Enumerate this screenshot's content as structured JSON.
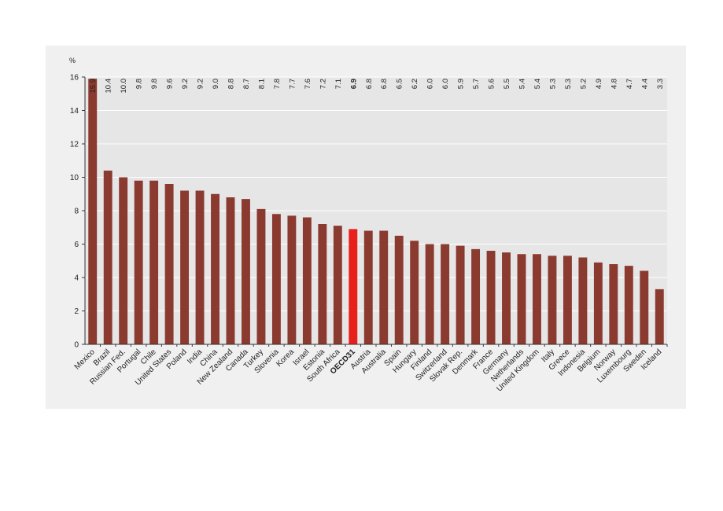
{
  "chart_data": {
    "type": "bar",
    "title": "",
    "xlabel": "",
    "ylabel": "%",
    "ylim": [
      0,
      16
    ],
    "yticks": [
      "0",
      "2",
      "4",
      "6",
      "8",
      "10",
      "12",
      "14",
      "16"
    ],
    "grid": true,
    "colors": {
      "bar": "#8b3a2f",
      "highlight": "#e8201c",
      "grid": "#ffffff",
      "plot_bg": "#e6e6e6"
    },
    "highlight_category": "OECD31",
    "categories": [
      "Mexico",
      "Brazil",
      "Russian Fed.",
      "Portugal",
      "Chile",
      "United States",
      "Poland",
      "India",
      "China",
      "New Zealand",
      "Canada",
      "Turkey",
      "Slovenia",
      "Korea",
      "Israel",
      "Estonia",
      "South Africa",
      "OECD31",
      "Austria",
      "Australia",
      "Spain",
      "Hungary",
      "Finland",
      "Switzerland",
      "Slovak Rep.",
      "Denmark",
      "France",
      "Germany",
      "Netherlands",
      "United Kingdom",
      "Italy",
      "Greece",
      "Indonesia",
      "Belgium",
      "Norway",
      "Luxembourg",
      "Sweden",
      "Iceland"
    ],
    "values": [
      15.9,
      10.4,
      10.0,
      9.8,
      9.8,
      9.6,
      9.2,
      9.2,
      9.0,
      8.8,
      8.7,
      8.1,
      7.8,
      7.7,
      7.6,
      7.2,
      7.1,
      6.9,
      6.8,
      6.8,
      6.5,
      6.2,
      6.0,
      6.0,
      5.9,
      5.7,
      5.6,
      5.5,
      5.4,
      5.4,
      5.3,
      5.3,
      5.2,
      4.9,
      4.8,
      4.7,
      4.4,
      3.3
    ],
    "data_labels": [
      "15.9",
      "10.4",
      "10.0",
      "9.8",
      "9.8",
      "9.6",
      "9.2",
      "9.2",
      "9.0",
      "8.8",
      "8.7",
      "8.1",
      "7.8",
      "7.7",
      "7.6",
      "7.2",
      "7.1",
      "6.9",
      "6.8",
      "6.8",
      "6.5",
      "6.2",
      "6.0",
      "6.0",
      "5.9",
      "5.7",
      "5.6",
      "5.5",
      "5.4",
      "5.4",
      "5.3",
      "5.3",
      "5.2",
      "4.9",
      "4.8",
      "4.7",
      "4.4",
      "3.3"
    ]
  }
}
